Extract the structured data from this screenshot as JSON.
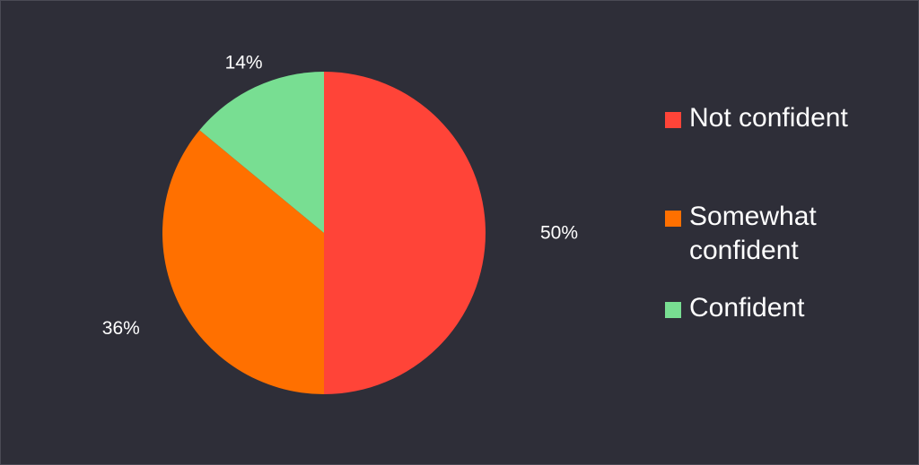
{
  "chart_data": {
    "type": "pie",
    "slices": [
      {
        "label": "Not confident",
        "value": 50,
        "value_label": "50%",
        "color": "#ff4438"
      },
      {
        "label": "Somewhat confident",
        "value": 36,
        "value_label": "36%",
        "color": "#ff7000"
      },
      {
        "label": "Confident",
        "value": 14,
        "value_label": "14%",
        "color": "#78de92"
      }
    ],
    "start_angle_deg": 0,
    "direction": "clockwise",
    "legend_position": "right",
    "background": "#2e2e38"
  }
}
